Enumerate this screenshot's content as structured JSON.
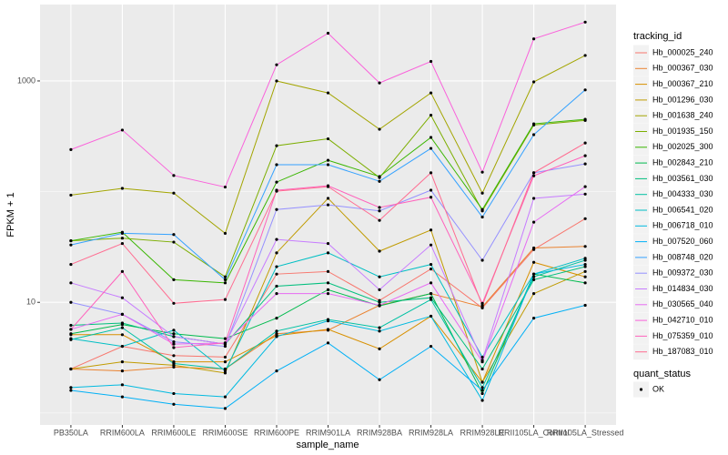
{
  "chart_data": {
    "type": "line",
    "x_label": "sample_name",
    "y_label": "FPKM + 1",
    "categories": [
      "PB350LA",
      "RRIM600LA",
      "RRIM600LE",
      "RRIM600SE",
      "RRIM600PE",
      "RRIM901LA",
      "RRIM928BA",
      "RRIM928LA",
      "RRIM928LE",
      "RRII105LA_Control",
      "RRII105LA_Stressed"
    ],
    "log_y": true,
    "ylim": [
      0.78,
      4900
    ],
    "yticks": [
      10,
      1000
    ],
    "y_minor_gridlines": [
      1,
      100
    ],
    "grid": true,
    "legend_title": "tracking_id",
    "legend_position": "right",
    "point_legend_title": "quant_status",
    "point_legend_labels": [
      "OK"
    ],
    "point_color": "#000000",
    "series": [
      {
        "name": "Hb_000025_240",
        "color": "#F8766D",
        "values": [
          2.5,
          4.0,
          3.3,
          3.2,
          18,
          19,
          10.4,
          20,
          8.9,
          30,
          57
        ]
      },
      {
        "name": "Hb_000367_030",
        "color": "#EA8331",
        "values": [
          2.5,
          2.4,
          2.6,
          2.5,
          5.2,
          5.6,
          9.4,
          12,
          9.1,
          31,
          32
        ]
      },
      {
        "name": "Hb_000367_210",
        "color": "#D89000",
        "values": [
          5.1,
          5.1,
          2.9,
          2.9,
          5.0,
          5.7,
          3.8,
          7.5,
          1.9,
          23,
          17
        ]
      },
      {
        "name": "Hb_001296_030",
        "color": "#C09B00",
        "values": [
          2.5,
          2.9,
          2.7,
          2.3,
          28,
          87,
          29,
          45,
          1.9,
          12,
          19
        ]
      },
      {
        "name": "Hb_001638_240",
        "color": "#A3A500",
        "values": [
          93,
          107,
          97,
          42,
          1000,
          780,
          366,
          780,
          97,
          980,
          1700
        ]
      },
      {
        "name": "Hb_001935_150",
        "color": "#7CAE00",
        "values": [
          36,
          38,
          35,
          17,
          260,
          300,
          134,
          490,
          67,
          400,
          440
        ]
      },
      {
        "name": "Hb_002025_300",
        "color": "#39B600",
        "values": [
          36,
          43,
          16,
          15,
          122,
          192,
          137,
          309,
          69,
          410,
          450
        ]
      },
      {
        "name": "Hb_002843_210",
        "color": "#00BB4E",
        "values": [
          5.2,
          6.3,
          5.2,
          4.7,
          7.2,
          13,
          9.3,
          12,
          1.5,
          18,
          15
        ]
      },
      {
        "name": "Hb_003561_030",
        "color": "#00BF7D",
        "values": [
          6.2,
          6.5,
          4.9,
          4.2,
          14,
          15,
          10,
          11,
          2.5,
          16,
          21
        ]
      },
      {
        "name": "Hb_004333_030",
        "color": "#00C1A3",
        "values": [
          4.6,
          5.9,
          2.8,
          2.5,
          5.5,
          7.0,
          5.9,
          10.6,
          1.7,
          17,
          24
        ]
      },
      {
        "name": "Hb_006541_020",
        "color": "#00BFC4",
        "values": [
          4.7,
          4.0,
          5.6,
          2.4,
          21,
          28,
          17,
          22,
          3.2,
          18,
          25
        ]
      },
      {
        "name": "Hb_006718_010",
        "color": "#00BAE0",
        "values": [
          1.7,
          1.8,
          1.5,
          1.4,
          4.9,
          6.8,
          5.5,
          7.5,
          1.3,
          18,
          22
        ]
      },
      {
        "name": "Hb_007520_060",
        "color": "#00B0F6",
        "values": [
          1.6,
          1.4,
          1.2,
          1.1,
          2.4,
          4.3,
          2.0,
          4.0,
          1.6,
          7.2,
          9.4
        ]
      },
      {
        "name": "Hb_008748_020",
        "color": "#35A2FF",
        "values": [
          33,
          42,
          41,
          16,
          175,
          175,
          124,
          246,
          59,
          327,
          830
        ]
      },
      {
        "name": "Hb_009372_030",
        "color": "#9590FF",
        "values": [
          10,
          7.8,
          4.4,
          4.0,
          69,
          76,
          67,
          103,
          24,
          148,
          178
        ]
      },
      {
        "name": "Hb_014834_030",
        "color": "#C77CFF",
        "values": [
          15,
          11,
          4.9,
          4.2,
          37,
          34,
          13,
          33,
          3.0,
          87,
          95
        ]
      },
      {
        "name": "Hb_030565_040",
        "color": "#E76BF3",
        "values": [
          5.7,
          7.8,
          4.2,
          4.3,
          12,
          12,
          9.4,
          15,
          2.9,
          53,
          111
        ]
      },
      {
        "name": "Hb_042710_010",
        "color": "#FA62DB",
        "values": [
          240,
          360,
          140,
          110,
          1400,
          2700,
          960,
          1500,
          150,
          2400,
          3400
        ]
      },
      {
        "name": "Hb_075359_010",
        "color": "#FF62BC",
        "values": [
          5.7,
          19,
          3.9,
          4.3,
          103,
          113,
          72,
          89,
          9.8,
          139,
          211
        ]
      },
      {
        "name": "Hb_187083_010",
        "color": "#FF6C91",
        "values": [
          22,
          34,
          9.8,
          10.6,
          101,
          111,
          55,
          148,
          9.4,
          148,
          275
        ]
      }
    ]
  }
}
